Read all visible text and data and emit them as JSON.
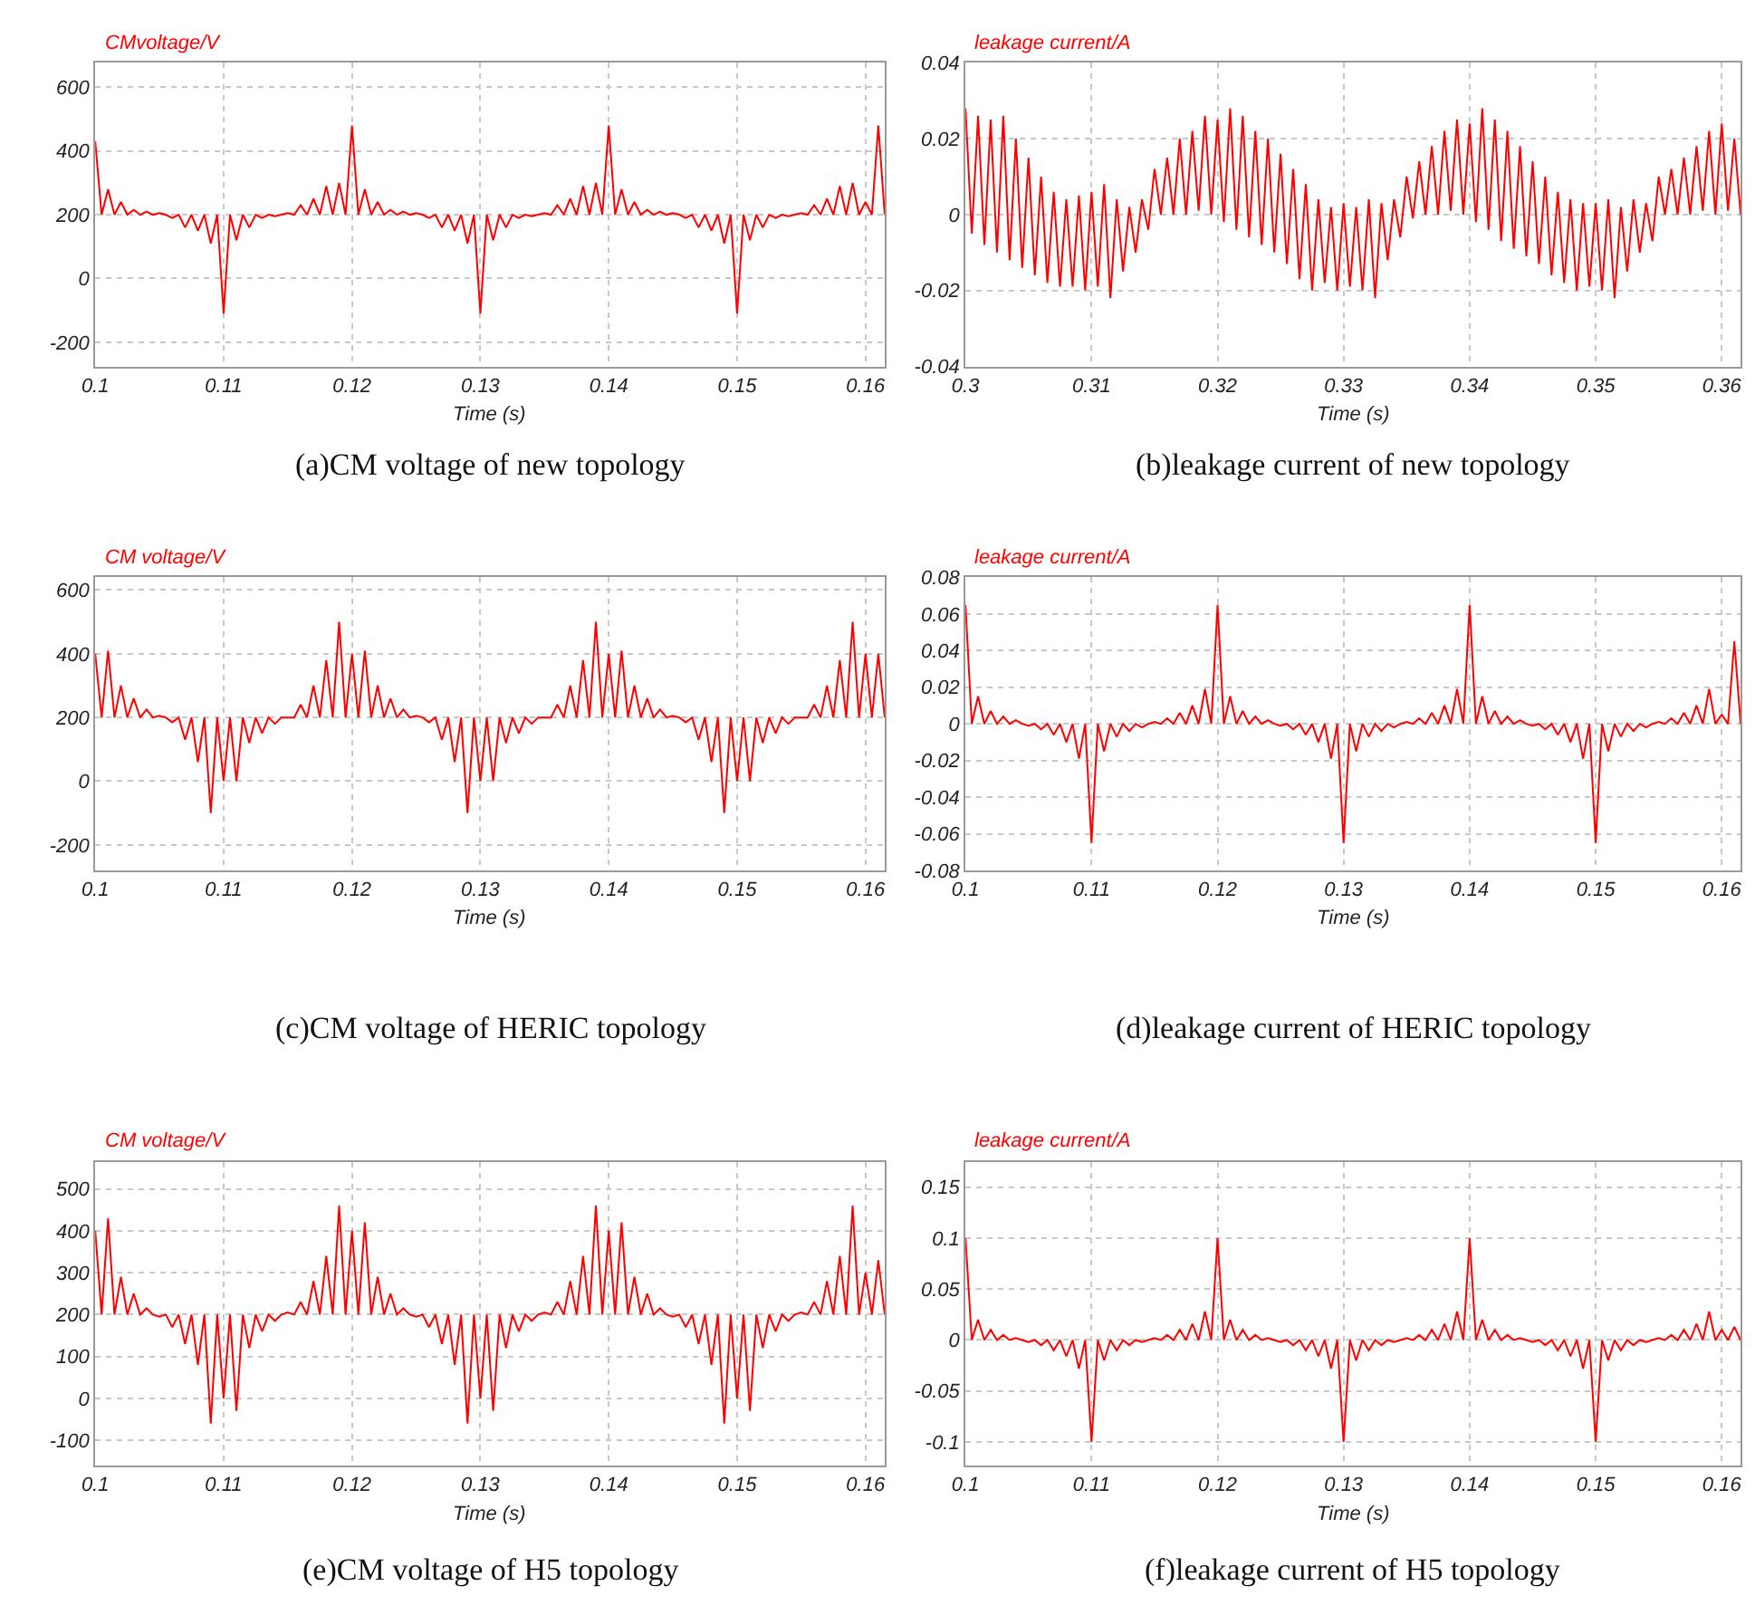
{
  "chart_data": [
    {
      "type": "line",
      "title": "(a)CM voltage of new topology",
      "ylabel": "CMvoltage/V",
      "xlabel": "Time (s)",
      "grid": true,
      "xlim": [
        0.1,
        0.1615
      ],
      "xticks": [
        0.1,
        0.11,
        0.12,
        0.13,
        0.14,
        0.15,
        0.16
      ],
      "ylim": [
        -276,
        677
      ],
      "yticks": [
        -200,
        0,
        200,
        400,
        600
      ],
      "x": [
        0.1,
        0.1005,
        0.101,
        0.1015,
        0.102,
        0.1025,
        0.103,
        0.1035,
        0.104,
        0.1045,
        0.105,
        0.1055,
        0.106,
        0.1065,
        0.107,
        0.1075,
        0.108,
        0.1085,
        0.109,
        0.1095,
        0.11,
        0.1105,
        0.111,
        0.1115,
        0.112,
        0.1125,
        0.113,
        0.1135,
        0.114,
        0.1145,
        0.115,
        0.1155,
        0.116,
        0.1165,
        0.117,
        0.1175,
        0.118,
        0.1185,
        0.119,
        0.1195,
        0.12,
        0.1205,
        0.121,
        0.1215,
        0.122,
        0.1225,
        0.123,
        0.1235,
        0.124,
        0.1245,
        0.125,
        0.1255,
        0.126,
        0.1265,
        0.127,
        0.1275,
        0.128,
        0.1285,
        0.129,
        0.1295,
        0.13,
        0.1305,
        0.131,
        0.1315,
        0.132,
        0.1325,
        0.133,
        0.1335,
        0.134,
        0.1345,
        0.135,
        0.1355,
        0.136,
        0.1365,
        0.137,
        0.1375,
        0.138,
        0.1385,
        0.139,
        0.1395,
        0.14,
        0.1405,
        0.141,
        0.1415,
        0.142,
        0.1425,
        0.143,
        0.1435,
        0.144,
        0.1445,
        0.145,
        0.1455,
        0.146,
        0.1465,
        0.147,
        0.1475,
        0.148,
        0.1485,
        0.149,
        0.1495,
        0.15,
        0.1505,
        0.151,
        0.1515,
        0.152,
        0.1525,
        0.153,
        0.1535,
        0.154,
        0.1545,
        0.155,
        0.1555,
        0.156,
        0.1565,
        0.157,
        0.1575,
        0.158,
        0.1585,
        0.159,
        0.1595,
        0.16,
        0.1605,
        0.161,
        0.1615
      ],
      "series": [
        {
          "color": "#ff0000",
          "values": [
            430,
            200,
            280,
            200,
            240,
            200,
            215,
            200,
            210,
            200,
            205,
            200,
            190,
            200,
            160,
            200,
            150,
            200,
            110,
            200,
            -110,
            200,
            120,
            200,
            160,
            200,
            190,
            200,
            195,
            200,
            205,
            200,
            230,
            200,
            250,
            200,
            290,
            200,
            300,
            200,
            480,
            200,
            280,
            200,
            240,
            200,
            215,
            200,
            210,
            200,
            205,
            200,
            190,
            200,
            160,
            200,
            150,
            200,
            110,
            200,
            -110,
            200,
            120,
            200,
            160,
            200,
            190,
            200,
            195,
            200,
            205,
            200,
            230,
            200,
            250,
            200,
            290,
            200,
            300,
            200,
            480,
            200,
            280,
            200,
            240,
            200,
            215,
            200,
            210,
            200,
            205,
            200,
            190,
            200,
            160,
            200,
            150,
            200,
            110,
            200,
            -110,
            200,
            120,
            200,
            160,
            200,
            190,
            200,
            195,
            200,
            205,
            200,
            230,
            200,
            250,
            200,
            290,
            200,
            300,
            200,
            240,
            200,
            480,
            200
          ]
        }
      ]
    },
    {
      "type": "line",
      "title": "(b)leakage current of new topology",
      "ylabel": "leakage current/A",
      "xlabel": "Time (s)",
      "grid": true,
      "xlim": [
        0.3,
        0.3615
      ],
      "xticks": [
        0.3,
        0.31,
        0.32,
        0.33,
        0.34,
        0.35,
        0.36
      ],
      "ylim": [
        -0.04,
        0.04
      ],
      "yticks": [
        -0.04,
        -0.02,
        0,
        0.02,
        0.04
      ],
      "x": [
        0.3,
        0.3005,
        0.301,
        0.3015,
        0.302,
        0.3025,
        0.303,
        0.3035,
        0.304,
        0.3045,
        0.305,
        0.3055,
        0.306,
        0.3065,
        0.307,
        0.3075,
        0.308,
        0.3085,
        0.309,
        0.3095,
        0.31,
        0.3105,
        0.311,
        0.3115,
        0.312,
        0.3125,
        0.313,
        0.3135,
        0.314,
        0.3145,
        0.315,
        0.3155,
        0.316,
        0.3165,
        0.317,
        0.3175,
        0.318,
        0.3185,
        0.319,
        0.3195,
        0.32,
        0.3205,
        0.321,
        0.3215,
        0.322,
        0.3225,
        0.323,
        0.3235,
        0.324,
        0.3245,
        0.325,
        0.3255,
        0.326,
        0.3265,
        0.327,
        0.3275,
        0.328,
        0.3285,
        0.329,
        0.3295,
        0.33,
        0.3305,
        0.331,
        0.3315,
        0.332,
        0.3325,
        0.333,
        0.3335,
        0.334,
        0.3345,
        0.335,
        0.3355,
        0.336,
        0.3365,
        0.337,
        0.3375,
        0.338,
        0.3385,
        0.339,
        0.3395,
        0.34,
        0.3405,
        0.341,
        0.3415,
        0.342,
        0.3425,
        0.343,
        0.3435,
        0.344,
        0.3445,
        0.345,
        0.3455,
        0.346,
        0.3465,
        0.347,
        0.3475,
        0.348,
        0.3485,
        0.349,
        0.3495,
        0.35,
        0.3505,
        0.351,
        0.3515,
        0.352,
        0.3525,
        0.353,
        0.3535,
        0.354,
        0.3545,
        0.355,
        0.3555,
        0.356,
        0.3565,
        0.357,
        0.3575,
        0.358,
        0.3585,
        0.359,
        0.3595,
        0.36,
        0.3605,
        0.361,
        0.3615
      ],
      "series": [
        {
          "color": "#ff0000",
          "values": [
            0.028,
            -0.005,
            0.026,
            -0.008,
            0.025,
            -0.01,
            0.026,
            -0.012,
            0.02,
            -0.014,
            0.015,
            -0.016,
            0.01,
            -0.018,
            0.006,
            -0.019,
            0.004,
            -0.019,
            0.005,
            -0.02,
            0.006,
            -0.019,
            0.008,
            -0.022,
            0.004,
            -0.015,
            0.002,
            -0.01,
            0.004,
            -0.004,
            0.012,
            0,
            0.015,
            0,
            0.02,
            0,
            0.022,
            0.001,
            0.026,
            0,
            0.025,
            -0.002,
            0.028,
            -0.004,
            0.026,
            -0.006,
            0.022,
            -0.008,
            0.02,
            -0.01,
            0.016,
            -0.013,
            0.012,
            -0.017,
            0.008,
            -0.02,
            0.004,
            -0.018,
            0.002,
            -0.02,
            0.003,
            -0.019,
            0.002,
            -0.02,
            0.004,
            -0.022,
            0.003,
            -0.012,
            0.004,
            -0.006,
            0.01,
            -0.001,
            0.014,
            0,
            0.018,
            0,
            0.022,
            0.001,
            0.025,
            0,
            0.024,
            -0.002,
            0.028,
            -0.004,
            0.025,
            -0.007,
            0.022,
            -0.009,
            0.018,
            -0.011,
            0.014,
            -0.013,
            0.01,
            -0.016,
            0.006,
            -0.018,
            0.004,
            -0.02,
            0.003,
            -0.019,
            0.003,
            -0.02,
            0.004,
            -0.022,
            0.002,
            -0.015,
            0.004,
            -0.01,
            0.003,
            -0.007,
            0.01,
            0,
            0.012,
            0,
            0.015,
            0,
            0.018,
            0.001,
            0.022,
            0,
            0.024,
            0.001,
            0.02,
            0
          ]
        }
      ]
    },
    {
      "type": "line",
      "title": "(c)CM voltage of HERIC topology",
      "ylabel": "CM voltage/V",
      "xlabel": "Time (s)",
      "grid": true,
      "xlim": [
        0.1,
        0.1615
      ],
      "xticks": [
        0.1,
        0.11,
        0.12,
        0.13,
        0.14,
        0.15,
        0.16
      ],
      "ylim": [
        -280,
        640
      ],
      "yticks": [
        -200,
        0,
        200,
        400,
        600
      ],
      "x": [
        0.1,
        0.1005,
        0.101,
        0.1015,
        0.102,
        0.1025,
        0.103,
        0.1035,
        0.104,
        0.1045,
        0.105,
        0.1055,
        0.106,
        0.1065,
        0.107,
        0.1075,
        0.108,
        0.1085,
        0.109,
        0.1095,
        0.11,
        0.1105,
        0.111,
        0.1115,
        0.112,
        0.1125,
        0.113,
        0.1135,
        0.114,
        0.1145,
        0.115,
        0.1155,
        0.116,
        0.1165,
        0.117,
        0.1175,
        0.118,
        0.1185,
        0.119,
        0.1195,
        0.12,
        0.1205,
        0.121,
        0.1215,
        0.122,
        0.1225,
        0.123,
        0.1235,
        0.124,
        0.1245,
        0.125,
        0.1255,
        0.126,
        0.1265,
        0.127,
        0.1275,
        0.128,
        0.1285,
        0.129,
        0.1295,
        0.13,
        0.1305,
        0.131,
        0.1315,
        0.132,
        0.1325,
        0.133,
        0.1335,
        0.134,
        0.1345,
        0.135,
        0.1355,
        0.136,
        0.1365,
        0.137,
        0.1375,
        0.138,
        0.1385,
        0.139,
        0.1395,
        0.14,
        0.1405,
        0.141,
        0.1415,
        0.142,
        0.1425,
        0.143,
        0.1435,
        0.144,
        0.1445,
        0.145,
        0.1455,
        0.146,
        0.1465,
        0.147,
        0.1475,
        0.148,
        0.1485,
        0.149,
        0.1495,
        0.15,
        0.1505,
        0.151,
        0.1515,
        0.152,
        0.1525,
        0.153,
        0.1535,
        0.154,
        0.1545,
        0.155,
        0.1555,
        0.156,
        0.1565,
        0.157,
        0.1575,
        0.158,
        0.1585,
        0.159,
        0.1595,
        0.16,
        0.1605,
        0.161,
        0.1615
      ],
      "series": [
        {
          "color": "#ff0000",
          "values": [
            400,
            200,
            410,
            200,
            300,
            200,
            260,
            200,
            225,
            200,
            205,
            200,
            185,
            200,
            130,
            200,
            60,
            200,
            -100,
            200,
            0,
            200,
            0,
            200,
            120,
            200,
            150,
            200,
            180,
            200,
            200,
            200,
            240,
            200,
            300,
            200,
            380,
            200,
            500,
            200,
            400,
            200,
            410,
            200,
            300,
            200,
            260,
            200,
            225,
            200,
            205,
            200,
            185,
            200,
            130,
            200,
            60,
            200,
            -100,
            200,
            0,
            200,
            0,
            200,
            120,
            200,
            150,
            200,
            180,
            200,
            200,
            200,
            240,
            200,
            300,
            200,
            380,
            200,
            500,
            200,
            400,
            200,
            410,
            200,
            300,
            200,
            260,
            200,
            225,
            200,
            205,
            200,
            185,
            200,
            130,
            200,
            60,
            200,
            -100,
            200,
            0,
            200,
            0,
            200,
            120,
            200,
            150,
            200,
            180,
            200,
            200,
            200,
            240,
            200,
            300,
            200,
            380,
            200,
            500,
            200,
            400,
            200,
            400,
            200
          ]
        }
      ]
    },
    {
      "type": "line",
      "title": "(d)leakage current of HERIC topology",
      "ylabel": "leakage current/A",
      "xlabel": "Time (s)",
      "grid": true,
      "xlim": [
        0.1,
        0.1615
      ],
      "xticks": [
        0.1,
        0.11,
        0.12,
        0.13,
        0.14,
        0.15,
        0.16
      ],
      "ylim": [
        -0.08,
        0.08
      ],
      "yticks": [
        -0.08,
        -0.06,
        -0.04,
        -0.02,
        0,
        0.02,
        0.04,
        0.06,
        0.08
      ],
      "x": [
        0.1,
        0.1005,
        0.101,
        0.1015,
        0.102,
        0.1025,
        0.103,
        0.1035,
        0.104,
        0.1045,
        0.105,
        0.1055,
        0.106,
        0.1065,
        0.107,
        0.1075,
        0.108,
        0.1085,
        0.109,
        0.1095,
        0.11,
        0.1105,
        0.111,
        0.1115,
        0.112,
        0.1125,
        0.113,
        0.1135,
        0.114,
        0.1145,
        0.115,
        0.1155,
        0.116,
        0.1165,
        0.117,
        0.1175,
        0.118,
        0.1185,
        0.119,
        0.1195,
        0.12,
        0.1205,
        0.121,
        0.1215,
        0.122,
        0.1225,
        0.123,
        0.1235,
        0.124,
        0.1245,
        0.125,
        0.1255,
        0.126,
        0.1265,
        0.127,
        0.1275,
        0.128,
        0.1285,
        0.129,
        0.1295,
        0.13,
        0.1305,
        0.131,
        0.1315,
        0.132,
        0.1325,
        0.133,
        0.1335,
        0.134,
        0.1345,
        0.135,
        0.1355,
        0.136,
        0.1365,
        0.137,
        0.1375,
        0.138,
        0.1385,
        0.139,
        0.1395,
        0.14,
        0.1405,
        0.141,
        0.1415,
        0.142,
        0.1425,
        0.143,
        0.1435,
        0.144,
        0.1445,
        0.145,
        0.1455,
        0.146,
        0.1465,
        0.147,
        0.1475,
        0.148,
        0.1485,
        0.149,
        0.1495,
        0.15,
        0.1505,
        0.151,
        0.1515,
        0.152,
        0.1525,
        0.153,
        0.1535,
        0.154,
        0.1545,
        0.155,
        0.1555,
        0.156,
        0.1565,
        0.157,
        0.1575,
        0.158,
        0.1585,
        0.159,
        0.1595,
        0.16,
        0.1605,
        0.161,
        0.1615
      ],
      "series": [
        {
          "color": "#ff0000",
          "values": [
            0.065,
            0,
            0.015,
            0,
            0.007,
            0,
            0.004,
            0,
            0.002,
            0,
            -0.001,
            0,
            -0.003,
            0,
            -0.006,
            0,
            -0.01,
            0,
            -0.019,
            0,
            -0.065,
            0,
            -0.015,
            0,
            -0.007,
            0,
            -0.004,
            0,
            -0.002,
            0,
            0.001,
            0,
            0.003,
            0,
            0.006,
            0,
            0.01,
            0,
            0.019,
            0,
            0.065,
            0,
            0.015,
            0,
            0.007,
            0,
            0.004,
            0,
            0.002,
            0,
            -0.001,
            0,
            -0.003,
            0,
            -0.006,
            0,
            -0.01,
            0,
            -0.019,
            0,
            -0.065,
            0,
            -0.015,
            0,
            -0.007,
            0,
            -0.004,
            0,
            -0.002,
            0,
            0.001,
            0,
            0.003,
            0,
            0.006,
            0,
            0.01,
            0,
            0.019,
            0,
            0.065,
            0,
            0.015,
            0,
            0.007,
            0,
            0.004,
            0,
            0.002,
            0,
            -0.001,
            0,
            -0.003,
            0,
            -0.006,
            0,
            -0.01,
            0,
            -0.019,
            0,
            -0.065,
            0,
            -0.015,
            0,
            -0.007,
            0,
            -0.004,
            0,
            -0.002,
            0,
            0.001,
            0,
            0.003,
            0,
            0.006,
            0,
            0.01,
            0,
            0.019,
            0,
            0.005,
            0,
            0.045,
            0
          ]
        }
      ]
    },
    {
      "type": "line",
      "title": "(e)CM voltage of H5 topology",
      "ylabel": "CM voltage/V",
      "xlabel": "Time (s)",
      "grid": true,
      "xlim": [
        0.1,
        0.1615
      ],
      "xticks": [
        0.1,
        0.11,
        0.12,
        0.13,
        0.14,
        0.15,
        0.16
      ],
      "ylim": [
        -160,
        565
      ],
      "yticks": [
        -100,
        0,
        100,
        200,
        300,
        400,
        500
      ],
      "x": [
        0.1,
        0.1005,
        0.101,
        0.1015,
        0.102,
        0.1025,
        0.103,
        0.1035,
        0.104,
        0.1045,
        0.105,
        0.1055,
        0.106,
        0.1065,
        0.107,
        0.1075,
        0.108,
        0.1085,
        0.109,
        0.1095,
        0.11,
        0.1105,
        0.111,
        0.1115,
        0.112,
        0.1125,
        0.113,
        0.1135,
        0.114,
        0.1145,
        0.115,
        0.1155,
        0.116,
        0.1165,
        0.117,
        0.1175,
        0.118,
        0.1185,
        0.119,
        0.1195,
        0.12,
        0.1205,
        0.121,
        0.1215,
        0.122,
        0.1225,
        0.123,
        0.1235,
        0.124,
        0.1245,
        0.125,
        0.1255,
        0.126,
        0.1265,
        0.127,
        0.1275,
        0.128,
        0.1285,
        0.129,
        0.1295,
        0.13,
        0.1305,
        0.131,
        0.1315,
        0.132,
        0.1325,
        0.133,
        0.1335,
        0.134,
        0.1345,
        0.135,
        0.1355,
        0.136,
        0.1365,
        0.137,
        0.1375,
        0.138,
        0.1385,
        0.139,
        0.1395,
        0.14,
        0.1405,
        0.141,
        0.1415,
        0.142,
        0.1425,
        0.143,
        0.1435,
        0.144,
        0.1445,
        0.145,
        0.1455,
        0.146,
        0.1465,
        0.147,
        0.1475,
        0.148,
        0.1485,
        0.149,
        0.1495,
        0.15,
        0.1505,
        0.151,
        0.1515,
        0.152,
        0.1525,
        0.153,
        0.1535,
        0.154,
        0.1545,
        0.155,
        0.1555,
        0.156,
        0.1565,
        0.157,
        0.1575,
        0.158,
        0.1585,
        0.159,
        0.1595,
        0.16,
        0.1605,
        0.161,
        0.1615
      ],
      "series": [
        {
          "color": "#ff0000",
          "values": [
            400,
            200,
            430,
            200,
            290,
            200,
            250,
            200,
            215,
            200,
            195,
            200,
            170,
            200,
            130,
            200,
            80,
            200,
            -60,
            200,
            0,
            200,
            -30,
            200,
            120,
            200,
            160,
            200,
            185,
            200,
            205,
            200,
            230,
            200,
            280,
            200,
            340,
            200,
            460,
            200,
            400,
            200,
            420,
            200,
            290,
            200,
            250,
            200,
            215,
            200,
            195,
            200,
            170,
            200,
            130,
            200,
            80,
            200,
            -60,
            200,
            0,
            200,
            -30,
            200,
            120,
            200,
            160,
            200,
            185,
            200,
            205,
            200,
            230,
            200,
            280,
            200,
            340,
            200,
            460,
            200,
            400,
            200,
            420,
            200,
            290,
            200,
            250,
            200,
            215,
            200,
            195,
            200,
            170,
            200,
            130,
            200,
            80,
            200,
            -60,
            200,
            0,
            200,
            -30,
            200,
            120,
            200,
            160,
            200,
            185,
            200,
            205,
            200,
            230,
            200,
            280,
            200,
            340,
            200,
            460,
            200,
            300,
            200,
            330,
            200
          ]
        }
      ]
    },
    {
      "type": "line",
      "title": "(f)leakage current of H5 topology",
      "ylabel": "leakage current/A",
      "xlabel": "Time (s)",
      "grid": true,
      "xlim": [
        0.1,
        0.1615
      ],
      "xticks": [
        0.1,
        0.11,
        0.12,
        0.13,
        0.14,
        0.15,
        0.16
      ],
      "ylim": [
        -0.123,
        0.175
      ],
      "yticks": [
        -0.1,
        -0.05,
        0,
        0.05,
        0.1,
        0.15
      ],
      "x": [
        0.1,
        0.1005,
        0.101,
        0.1015,
        0.102,
        0.1025,
        0.103,
        0.1035,
        0.104,
        0.1045,
        0.105,
        0.1055,
        0.106,
        0.1065,
        0.107,
        0.1075,
        0.108,
        0.1085,
        0.109,
        0.1095,
        0.11,
        0.1105,
        0.111,
        0.1115,
        0.112,
        0.1125,
        0.113,
        0.1135,
        0.114,
        0.1145,
        0.115,
        0.1155,
        0.116,
        0.1165,
        0.117,
        0.1175,
        0.118,
        0.1185,
        0.119,
        0.1195,
        0.12,
        0.1205,
        0.121,
        0.1215,
        0.122,
        0.1225,
        0.123,
        0.1235,
        0.124,
        0.1245,
        0.125,
        0.1255,
        0.126,
        0.1265,
        0.127,
        0.1275,
        0.128,
        0.1285,
        0.129,
        0.1295,
        0.13,
        0.1305,
        0.131,
        0.1315,
        0.132,
        0.1325,
        0.133,
        0.1335,
        0.134,
        0.1345,
        0.135,
        0.1355,
        0.136,
        0.1365,
        0.137,
        0.1375,
        0.138,
        0.1385,
        0.139,
        0.1395,
        0.14,
        0.1405,
        0.141,
        0.1415,
        0.142,
        0.1425,
        0.143,
        0.1435,
        0.144,
        0.1445,
        0.145,
        0.1455,
        0.146,
        0.1465,
        0.147,
        0.1475,
        0.148,
        0.1485,
        0.149,
        0.1495,
        0.15,
        0.1505,
        0.151,
        0.1515,
        0.152,
        0.1525,
        0.153,
        0.1535,
        0.154,
        0.1545,
        0.155,
        0.1555,
        0.156,
        0.1565,
        0.157,
        0.1575,
        0.158,
        0.1585,
        0.159,
        0.1595,
        0.16,
        0.1605,
        0.161,
        0.1615
      ],
      "series": [
        {
          "color": "#ff0000",
          "values": [
            0.1,
            0,
            0.02,
            0,
            0.01,
            0,
            0.005,
            0,
            0.002,
            0,
            -0.002,
            0,
            -0.005,
            0,
            -0.01,
            0,
            -0.016,
            0,
            -0.028,
            0,
            -0.1,
            0,
            -0.02,
            0,
            -0.01,
            0,
            -0.005,
            0,
            -0.002,
            0,
            0.002,
            0,
            0.005,
            0,
            0.01,
            0,
            0.016,
            0,
            0.028,
            0,
            0.1,
            0,
            0.02,
            0,
            0.01,
            0,
            0.005,
            0,
            0.002,
            0,
            -0.002,
            0,
            -0.005,
            0,
            -0.01,
            0,
            -0.016,
            0,
            -0.028,
            0,
            -0.1,
            0,
            -0.02,
            0,
            -0.01,
            0,
            -0.005,
            0,
            -0.002,
            0,
            0.002,
            0,
            0.005,
            0,
            0.01,
            0,
            0.016,
            0,
            0.028,
            0,
            0.1,
            0,
            0.02,
            0,
            0.01,
            0,
            0.005,
            0,
            0.002,
            0,
            -0.002,
            0,
            -0.005,
            0,
            -0.01,
            0,
            -0.016,
            0,
            -0.028,
            0,
            -0.1,
            0,
            -0.02,
            0,
            -0.01,
            0,
            -0.005,
            0,
            -0.002,
            0,
            0.002,
            0,
            0.005,
            0,
            0.01,
            0,
            0.016,
            0,
            0.028,
            0,
            0.01,
            0,
            0.013,
            0
          ]
        }
      ]
    }
  ]
}
